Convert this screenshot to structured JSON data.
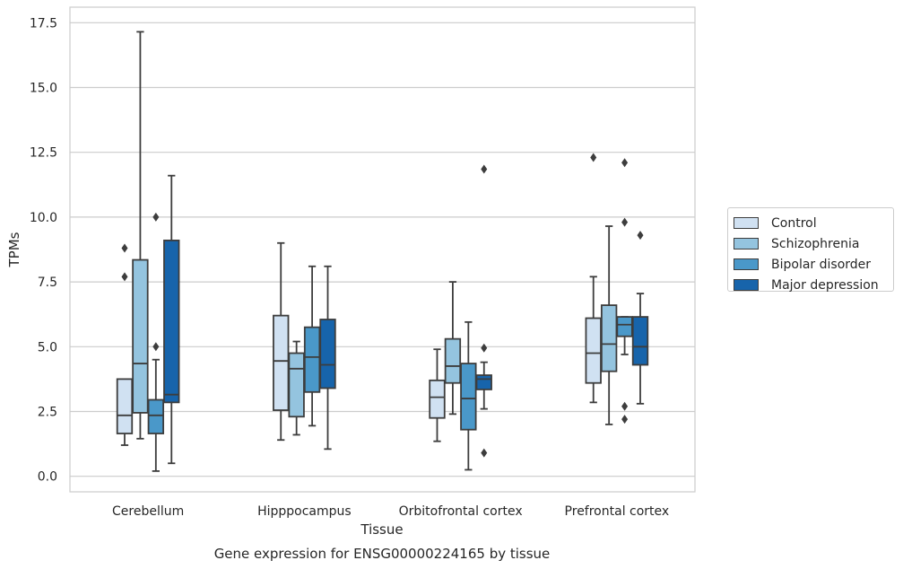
{
  "chart_data": {
    "type": "box",
    "xlabel": "Tissue",
    "ylabel": "TPMs",
    "caption": "Gene expression for ENSG00000224165 by tissue",
    "categories": [
      "Cerebellum",
      "Hipppocampus",
      "Orbitofrontal cortex",
      "Prefrontal cortex"
    ],
    "ylim": [
      -0.6,
      18.1
    ],
    "yticks": [
      0.0,
      2.5,
      5.0,
      7.5,
      10.0,
      12.5,
      15.0,
      17.5
    ],
    "ytick_labels": [
      "0.0",
      "2.5",
      "5.0",
      "7.5",
      "10.0",
      "12.5",
      "15.0",
      "17.5"
    ],
    "grid": "horizontal",
    "legend_position": "right",
    "series": [
      {
        "name": "Control",
        "color": "#d0e1f2",
        "boxes": [
          {
            "whisker_low": 1.2,
            "q1": 1.65,
            "median": 2.35,
            "q3": 3.75,
            "whisker_high": 3.75,
            "outliers": [
              7.7,
              8.8
            ]
          },
          {
            "whisker_low": 1.4,
            "q1": 2.55,
            "median": 4.45,
            "q3": 6.2,
            "whisker_high": 9.0,
            "outliers": []
          },
          {
            "whisker_low": 1.35,
            "q1": 2.25,
            "median": 3.05,
            "q3": 3.7,
            "whisker_high": 4.9,
            "outliers": []
          },
          {
            "whisker_low": 2.85,
            "q1": 3.6,
            "median": 4.75,
            "q3": 6.1,
            "whisker_high": 7.7,
            "outliers": [
              12.3
            ]
          }
        ]
      },
      {
        "name": "Schizophrenia",
        "color": "#94c4df",
        "boxes": [
          {
            "whisker_low": 1.45,
            "q1": 2.45,
            "median": 4.35,
            "q3": 8.35,
            "whisker_high": 17.15,
            "outliers": []
          },
          {
            "whisker_low": 1.6,
            "q1": 2.3,
            "median": 4.15,
            "q3": 4.75,
            "whisker_high": 5.2,
            "outliers": []
          },
          {
            "whisker_low": 2.4,
            "q1": 3.6,
            "median": 4.25,
            "q3": 5.3,
            "whisker_high": 7.5,
            "outliers": []
          },
          {
            "whisker_low": 2.0,
            "q1": 4.05,
            "median": 5.1,
            "q3": 6.6,
            "whisker_high": 9.65,
            "outliers": []
          }
        ]
      },
      {
        "name": "Bipolar disorder",
        "color": "#4a98c9",
        "boxes": [
          {
            "whisker_low": 0.2,
            "q1": 1.65,
            "median": 2.35,
            "q3": 2.95,
            "whisker_high": 4.5,
            "outliers": [
              5.0,
              10.0
            ]
          },
          {
            "whisker_low": 1.95,
            "q1": 3.25,
            "median": 4.6,
            "q3": 5.75,
            "whisker_high": 8.1,
            "outliers": []
          },
          {
            "whisker_low": 0.25,
            "q1": 1.8,
            "median": 3.0,
            "q3": 4.35,
            "whisker_high": 5.95,
            "outliers": []
          },
          {
            "whisker_low": 4.7,
            "q1": 5.4,
            "median": 5.85,
            "q3": 6.15,
            "whisker_high": 6.15,
            "outliers": [
              2.2,
              2.7,
              9.8,
              12.1
            ]
          }
        ]
      },
      {
        "name": "Major depression",
        "color": "#1764ab",
        "boxes": [
          {
            "whisker_low": 0.5,
            "q1": 2.85,
            "median": 3.15,
            "q3": 9.1,
            "whisker_high": 11.6,
            "outliers": []
          },
          {
            "whisker_low": 1.05,
            "q1": 3.4,
            "median": 4.3,
            "q3": 6.05,
            "whisker_high": 8.1,
            "outliers": []
          },
          {
            "whisker_low": 2.6,
            "q1": 3.35,
            "median": 3.75,
            "q3": 3.9,
            "whisker_high": 4.4,
            "outliers": [
              0.9,
              4.95,
              11.85
            ]
          },
          {
            "whisker_low": 2.8,
            "q1": 4.3,
            "median": 5.0,
            "q3": 6.15,
            "whisker_high": 7.05,
            "outliers": [
              9.3
            ]
          }
        ]
      }
    ]
  }
}
